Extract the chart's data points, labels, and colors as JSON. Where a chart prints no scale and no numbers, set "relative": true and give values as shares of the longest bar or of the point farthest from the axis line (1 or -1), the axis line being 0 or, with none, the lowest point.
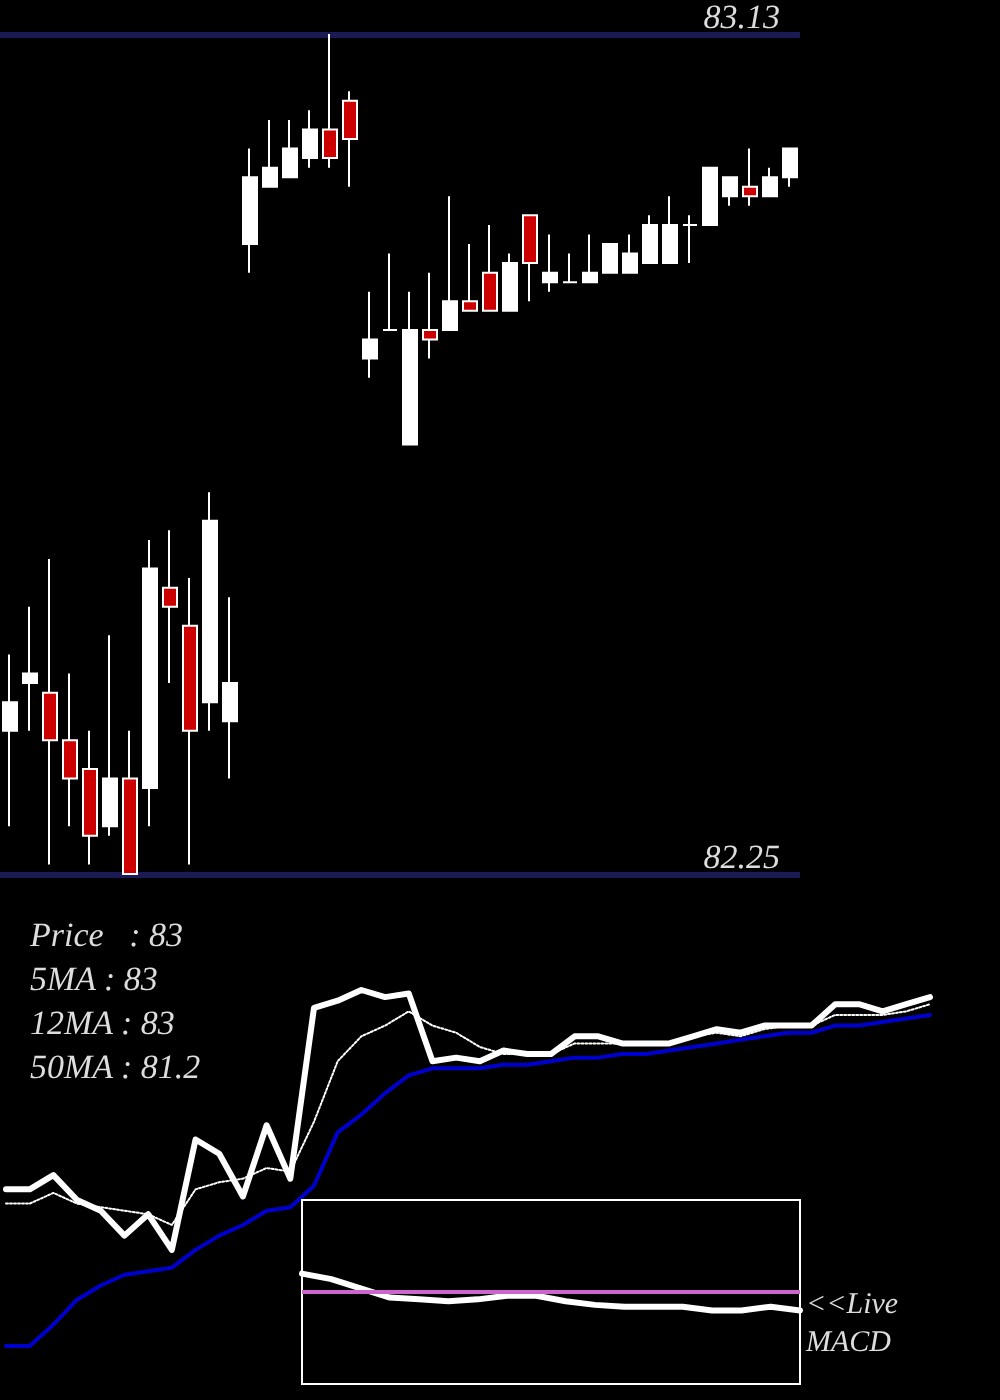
{
  "chart_data": [
    {
      "type": "candlestick",
      "categories": [
        null,
        null,
        null,
        null,
        null,
        null,
        null,
        null,
        null,
        null,
        null,
        null,
        null,
        null,
        null,
        null,
        null,
        null,
        null,
        null,
        null,
        null,
        null,
        null,
        null,
        null,
        null,
        null,
        null,
        null,
        null,
        null,
        null,
        null,
        null,
        null,
        null,
        null,
        null,
        null
      ],
      "ohlc": [
        [
          82.4,
          82.48,
          82.3,
          82.43
        ],
        [
          82.45,
          82.53,
          82.4,
          82.46
        ],
        [
          82.44,
          82.58,
          82.26,
          82.39
        ],
        [
          82.39,
          82.46,
          82.3,
          82.35
        ],
        [
          82.36,
          82.4,
          82.26,
          82.29
        ],
        [
          82.3,
          82.5,
          82.29,
          82.35
        ],
        [
          82.35,
          82.4,
          82.25,
          82.25
        ],
        [
          82.34,
          82.6,
          82.3,
          82.57
        ],
        [
          82.55,
          82.61,
          82.45,
          82.53
        ],
        [
          82.51,
          82.56,
          82.26,
          82.4
        ],
        [
          82.43,
          82.65,
          82.4,
          82.62
        ],
        [
          82.41,
          82.54,
          82.35,
          82.45
        ],
        [
          82.91,
          83.01,
          82.88,
          82.98
        ],
        [
          82.97,
          83.04,
          82.97,
          82.99
        ],
        [
          82.98,
          83.04,
          82.98,
          83.01
        ],
        [
          83.0,
          83.05,
          82.99,
          83.03
        ],
        [
          83.03,
          83.13,
          82.99,
          83.0
        ],
        [
          83.06,
          83.07,
          82.97,
          83.02
        ],
        [
          82.79,
          82.86,
          82.77,
          82.81
        ],
        [
          82.82,
          82.9,
          82.82,
          82.82
        ],
        [
          82.7,
          82.86,
          82.7,
          82.82
        ],
        [
          82.82,
          82.88,
          82.79,
          82.81
        ],
        [
          82.82,
          82.96,
          82.82,
          82.85
        ],
        [
          82.85,
          82.91,
          82.84,
          82.84
        ],
        [
          82.88,
          82.93,
          82.84,
          82.84
        ],
        [
          82.84,
          82.9,
          82.84,
          82.89
        ],
        [
          82.94,
          82.94,
          82.85,
          82.89
        ],
        [
          82.87,
          82.92,
          82.86,
          82.88
        ],
        [
          82.87,
          82.9,
          82.87,
          82.87
        ],
        [
          82.87,
          82.92,
          82.87,
          82.88
        ],
        [
          82.88,
          82.91,
          82.88,
          82.91
        ],
        [
          82.88,
          82.92,
          82.88,
          82.9
        ],
        [
          82.89,
          82.94,
          82.89,
          82.93
        ],
        [
          82.89,
          82.96,
          82.89,
          82.93
        ],
        [
          82.93,
          82.94,
          82.89,
          82.93
        ],
        [
          82.93,
          82.99,
          82.93,
          82.99
        ],
        [
          82.96,
          82.98,
          82.95,
          82.98
        ],
        [
          82.97,
          83.01,
          82.95,
          82.96
        ],
        [
          82.96,
          82.99,
          82.96,
          82.98
        ],
        [
          82.98,
          83.01,
          82.97,
          83.01
        ]
      ],
      "colors": [
        "#ffffff",
        "#ffffff",
        "#cc0000",
        "#cc0000",
        "#cc0000",
        "#ffffff",
        "#cc0000",
        "#ffffff",
        "#cc0000",
        "#cc0000",
        "#ffffff",
        "#ffffff",
        "#ffffff",
        "#ffffff",
        "#ffffff",
        "#ffffff",
        "#cc0000",
        "#cc0000",
        "#ffffff",
        "#ffffff",
        "#ffffff",
        "#cc0000",
        "#ffffff",
        "#cc0000",
        "#cc0000",
        "#ffffff",
        "#cc0000",
        "#ffffff",
        "#ffffff",
        "#ffffff",
        "#ffffff",
        "#ffffff",
        "#ffffff",
        "#ffffff",
        "#ffffff",
        "#ffffff",
        "#ffffff",
        "#cc0000",
        "#ffffff",
        "#ffffff"
      ],
      "ylim": [
        82.25,
        83.13
      ],
      "yticks": [
        82.25,
        83.13
      ],
      "grid": "y",
      "tick_labels": "y"
    },
    {
      "type": "line",
      "relative": true,
      "marker": "none",
      "categories": [
        null,
        null,
        null,
        null,
        null,
        null,
        null,
        null,
        null,
        null,
        null,
        null,
        null,
        null,
        null,
        null,
        null,
        null,
        null,
        null,
        null,
        null,
        null,
        null,
        null,
        null,
        null,
        null,
        null,
        null,
        null,
        null,
        null,
        null,
        null,
        null,
        null,
        null,
        null,
        null
      ],
      "series": [
        {
          "color": "#ffffff",
          "values": [
            0.44,
            0.44,
            0.48,
            0.41,
            0.38,
            0.31,
            0.37,
            0.27,
            0.58,
            0.54,
            0.42,
            0.62,
            0.47,
            0.95,
            0.97,
            1,
            0.98,
            0.99,
            0.8,
            0.81,
            0.8,
            0.83,
            0.82,
            0.82,
            0.87,
            0.87,
            0.85,
            0.85,
            0.85,
            0.87,
            0.89,
            0.88,
            0.9,
            0.9,
            0.9,
            0.96,
            0.96,
            0.94,
            0.96,
            0.98
          ]
        },
        {
          "color": "#ffffff",
          "line_style": "dotted",
          "values": [
            0.4,
            0.4,
            0.43,
            0.4,
            0.39,
            0.38,
            0.37,
            0.34,
            0.44,
            0.46,
            0.47,
            0.5,
            0.49,
            0.63,
            0.8,
            0.87,
            0.9,
            0.94,
            0.9,
            0.88,
            0.84,
            0.82,
            0.82,
            0.82,
            0.85,
            0.85,
            0.85,
            0.85,
            0.85,
            0.87,
            0.88,
            0.87,
            0.89,
            0.9,
            0.9,
            0.93,
            0.93,
            0.93,
            0.94,
            0.96
          ]
        },
        {
          "color": "#0000cc",
          "values": [
            0,
            0,
            0.06,
            0.13,
            0.17,
            0.2,
            0.21,
            0.22,
            0.27,
            0.31,
            0.34,
            0.38,
            0.39,
            0.45,
            0.6,
            0.65,
            0.71,
            0.76,
            0.78,
            0.78,
            0.78,
            0.79,
            0.79,
            0.8,
            0.81,
            0.81,
            0.82,
            0.82,
            0.83,
            0.84,
            0.85,
            0.86,
            0.87,
            0.88,
            0.88,
            0.9,
            0.9,
            0.91,
            0.92,
            0.93
          ]
        }
      ],
      "annotations": [
        "Price   : 83",
        "5MA : 83",
        "12MA : 83",
        "50MA : 81.2"
      ]
    },
    {
      "type": "line",
      "relative": true,
      "marker": "none",
      "categories": [
        null,
        null,
        null,
        null,
        null,
        null,
        null,
        null,
        null,
        null,
        null,
        null,
        null,
        null,
        null,
        null,
        null,
        null
      ],
      "series": [
        {
          "color": "#ffffff",
          "values": [
            1,
            0.7,
            0.2,
            -0.3,
            -0.4,
            -0.5,
            -0.4,
            -0.2,
            -0.2,
            -0.5,
            -0.7,
            -0.8,
            -0.8,
            -0.8,
            -1,
            -1,
            -0.8,
            -1
          ]
        }
      ],
      "ref_lines": [
        {
          "axis": "y",
          "value": 0,
          "color": "#cc66cc"
        }
      ],
      "annotations": [
        "<<Live MACD"
      ]
    }
  ]
}
